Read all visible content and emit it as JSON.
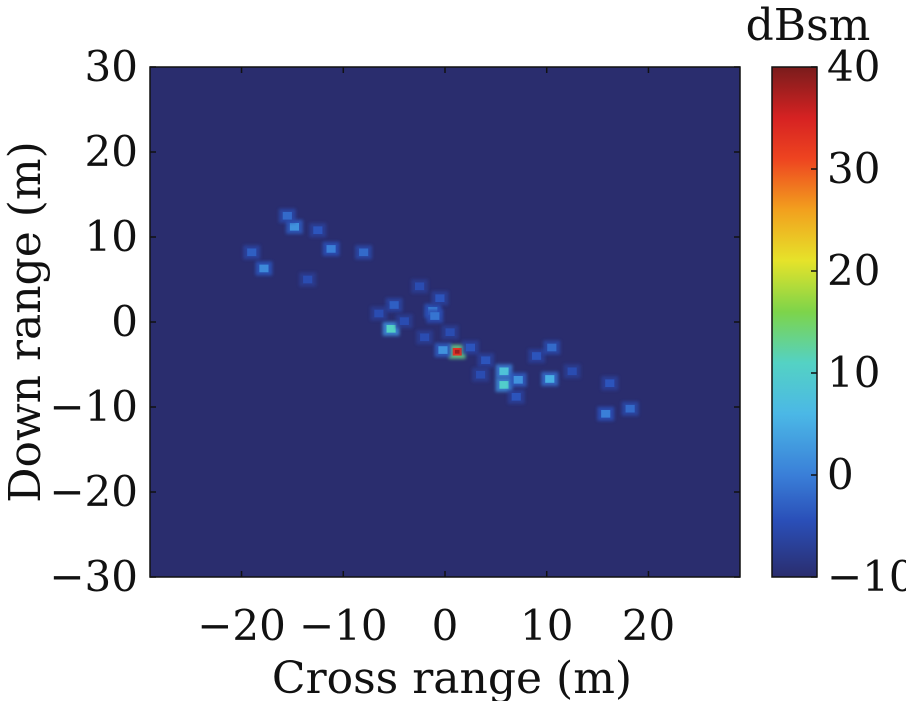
{
  "chart_data": {
    "type": "heatmap",
    "xlabel": "Cross range (m)",
    "ylabel": "Down range (m)",
    "xlim": [
      -29,
      29
    ],
    "ylim": [
      -30,
      30
    ],
    "x_ticks": [
      -20,
      -10,
      0,
      10,
      20
    ],
    "y_ticks": [
      -30,
      -20,
      -10,
      0,
      10,
      20,
      30
    ],
    "colorbar": {
      "label": "dBsm",
      "min": -10,
      "max": 40,
      "ticks": [
        -10,
        0,
        10,
        20,
        30,
        40
      ],
      "colormap": "jet"
    },
    "background_dbsm": -10,
    "scatterers": [
      {
        "x": 1.2,
        "y": -3.5,
        "dbsm": 33
      },
      {
        "x": -5.3,
        "y": -0.8,
        "dbsm": 11
      },
      {
        "x": 5.8,
        "y": -5.8,
        "dbsm": 8
      },
      {
        "x": 5.8,
        "y": -7.4,
        "dbsm": 10
      },
      {
        "x": 10.3,
        "y": -6.7,
        "dbsm": 5
      },
      {
        "x": 7.2,
        "y": -6.8,
        "dbsm": 2
      },
      {
        "x": -0.2,
        "y": -3.3,
        "dbsm": 2
      },
      {
        "x": -1.2,
        "y": 1.3,
        "dbsm": 1
      },
      {
        "x": -1.0,
        "y": 0.7,
        "dbsm": -1
      },
      {
        "x": -14.8,
        "y": 11.2,
        "dbsm": 2
      },
      {
        "x": -15.5,
        "y": 12.5,
        "dbsm": -2
      },
      {
        "x": -17.8,
        "y": 6.3,
        "dbsm": 1
      },
      {
        "x": -19.0,
        "y": 8.2,
        "dbsm": -3
      },
      {
        "x": -11.2,
        "y": 8.6,
        "dbsm": 0
      },
      {
        "x": -8.0,
        "y": 8.2,
        "dbsm": -2
      },
      {
        "x": -12.5,
        "y": 10.8,
        "dbsm": -4
      },
      {
        "x": -5.0,
        "y": 2.0,
        "dbsm": -3
      },
      {
        "x": -2.5,
        "y": 4.2,
        "dbsm": -5
      },
      {
        "x": -0.5,
        "y": 2.8,
        "dbsm": -4
      },
      {
        "x": -4.0,
        "y": 0.1,
        "dbsm": -5
      },
      {
        "x": -2.0,
        "y": -1.8,
        "dbsm": -5
      },
      {
        "x": 0.5,
        "y": -1.2,
        "dbsm": -5
      },
      {
        "x": 2.5,
        "y": -3.0,
        "dbsm": -4
      },
      {
        "x": 4.0,
        "y": -4.5,
        "dbsm": -4
      },
      {
        "x": 3.5,
        "y": -6.2,
        "dbsm": -5
      },
      {
        "x": 7.0,
        "y": -8.8,
        "dbsm": -4
      },
      {
        "x": 9.0,
        "y": -4.0,
        "dbsm": -4
      },
      {
        "x": 10.5,
        "y": -3.0,
        "dbsm": -2
      },
      {
        "x": 15.8,
        "y": -10.8,
        "dbsm": 0
      },
      {
        "x": 18.2,
        "y": -10.2,
        "dbsm": -2
      },
      {
        "x": 16.2,
        "y": -7.2,
        "dbsm": -4
      },
      {
        "x": -13.5,
        "y": 5.0,
        "dbsm": -5
      },
      {
        "x": 12.5,
        "y": -5.8,
        "dbsm": -5
      },
      {
        "x": -6.5,
        "y": 1.0,
        "dbsm": -5
      }
    ]
  }
}
